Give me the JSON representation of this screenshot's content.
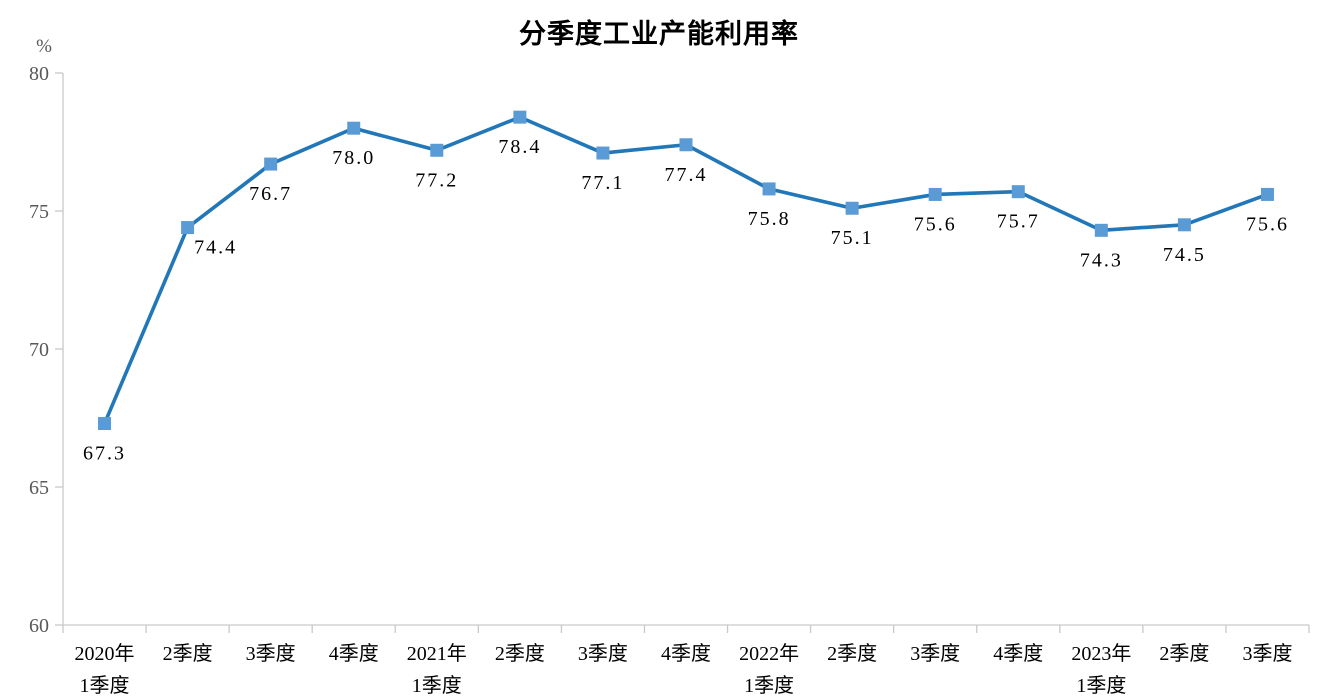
{
  "page": {
    "background": "#ffffff"
  },
  "chart_data": {
    "type": "line",
    "title": "分季度工业产能利用率",
    "unit_label": "%",
    "categories": [
      [
        "2020年",
        "1季度"
      ],
      [
        "2季度"
      ],
      [
        "3季度"
      ],
      [
        "4季度"
      ],
      [
        "2021年",
        "1季度"
      ],
      [
        "2季度"
      ],
      [
        "3季度"
      ],
      [
        "4季度"
      ],
      [
        "2022年",
        "1季度"
      ],
      [
        "2季度"
      ],
      [
        "3季度"
      ],
      [
        "4季度"
      ],
      [
        "2023年",
        "1季度"
      ],
      [
        "2季度"
      ],
      [
        "3季度"
      ]
    ],
    "values": [
      67.3,
      74.4,
      76.7,
      78.0,
      77.2,
      78.4,
      77.1,
      77.4,
      75.8,
      75.1,
      75.6,
      75.7,
      74.3,
      74.5,
      75.6
    ],
    "data_labels": [
      "67.3",
      "74.4",
      "76.7",
      "78.0",
      "77.2",
      "78.4",
      "77.1",
      "77.4",
      "75.8",
      "75.1",
      "75.6",
      "75.7",
      "74.3",
      "74.5",
      "75.6"
    ],
    "ylim": [
      60,
      80
    ],
    "y_ticks": [
      60,
      65,
      70,
      75,
      80
    ],
    "grid": false,
    "legend": false,
    "colors": {
      "line": "#2177B8",
      "marker": "#5B9BD5",
      "axis": "#C9C9C9",
      "y_tick_label": "#595959",
      "x_tick_label": "#000000",
      "data_label": "#000000",
      "title": "#000000"
    },
    "label_offsets": {
      "1": {
        "dx": 28,
        "dy": 26
      }
    }
  }
}
